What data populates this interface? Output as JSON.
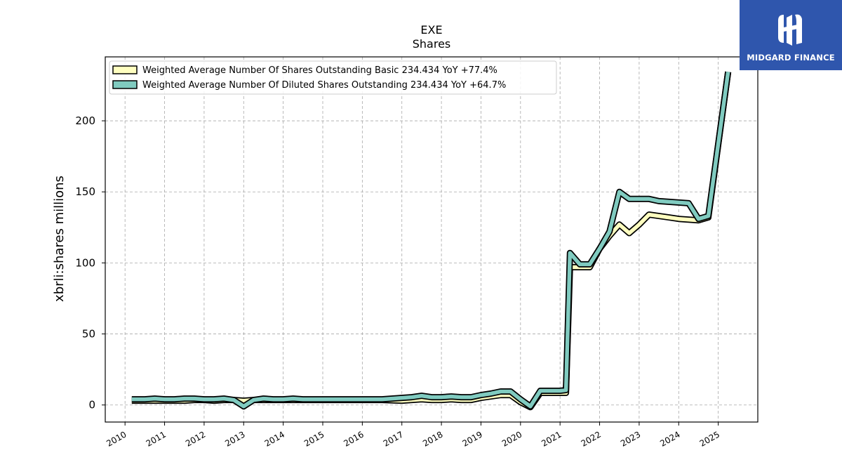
{
  "chart_data": {
    "type": "line",
    "title": "EXE",
    "subtitle": "Shares",
    "ylabel": "xbrli:shares millions",
    "xlabel": "",
    "xlim": [
      2009.5,
      2026.0
    ],
    "ylim": [
      -12,
      245
    ],
    "yticks": [
      0,
      50,
      100,
      150,
      200
    ],
    "xticks": [
      "2010",
      "2011",
      "2012",
      "2013",
      "2014",
      "2015",
      "2016",
      "2017",
      "2018",
      "2019",
      "2020",
      "2021",
      "2022",
      "2023",
      "2024",
      "2025"
    ],
    "grid": true,
    "legend_position": "top-left",
    "series": [
      {
        "name": "Weighted Average Number Of Shares Outstanding Basic",
        "legend_label": "Weighted Average Number Of Shares Outstanding Basic  234.434 YoY +77.4%",
        "color": "#ffffc0",
        "points": [
          [
            2010.17,
            3
          ],
          [
            2010.5,
            3
          ],
          [
            2010.75,
            3
          ],
          [
            2011.0,
            3
          ],
          [
            2011.25,
            3
          ],
          [
            2011.5,
            3
          ],
          [
            2011.75,
            3.5
          ],
          [
            2012.0,
            3.5
          ],
          [
            2012.25,
            3
          ],
          [
            2012.5,
            3.5
          ],
          [
            2012.75,
            3.5
          ],
          [
            2013.0,
            3
          ],
          [
            2013.25,
            3.5
          ],
          [
            2013.5,
            3.5
          ],
          [
            2013.75,
            3.5
          ],
          [
            2014.0,
            3.5
          ],
          [
            2014.25,
            3.5
          ],
          [
            2014.5,
            3.5
          ],
          [
            2015.0,
            3.5
          ],
          [
            2015.5,
            3.5
          ],
          [
            2016.0,
            3.5
          ],
          [
            2016.5,
            3.5
          ],
          [
            2017.0,
            3
          ],
          [
            2017.25,
            3.5
          ],
          [
            2017.5,
            4
          ],
          [
            2017.75,
            3.5
          ],
          [
            2018.0,
            3.5
          ],
          [
            2018.25,
            4
          ],
          [
            2018.5,
            3.5
          ],
          [
            2018.75,
            3.5
          ],
          [
            2019.0,
            5
          ],
          [
            2019.25,
            6
          ],
          [
            2019.5,
            7
          ],
          [
            2019.75,
            7
          ],
          [
            2020.0,
            2
          ],
          [
            2020.25,
            -1.5
          ],
          [
            2020.5,
            8.5
          ],
          [
            2020.75,
            8.5
          ],
          [
            2021.0,
            8.5
          ],
          [
            2021.15,
            8.5
          ],
          [
            2021.25,
            97
          ],
          [
            2021.5,
            97
          ],
          [
            2021.75,
            97
          ],
          [
            2022.0,
            110
          ],
          [
            2022.25,
            119
          ],
          [
            2022.5,
            127
          ],
          [
            2022.75,
            121
          ],
          [
            2023.0,
            127
          ],
          [
            2023.25,
            134
          ],
          [
            2023.5,
            133
          ],
          [
            2023.75,
            132
          ],
          [
            2024.0,
            131
          ],
          [
            2024.25,
            130.5
          ],
          [
            2024.5,
            130
          ],
          [
            2024.75,
            132
          ],
          [
            2025.25,
            234.434
          ]
        ]
      },
      {
        "name": "Weighted Average Number Of Diluted Shares Outstanding",
        "legend_label": "Weighted Average Number Of Diluted Shares Outstanding  234.434 YoY +64.7%",
        "color": "#80cbc0",
        "points": [
          [
            2010.17,
            4
          ],
          [
            2010.5,
            4
          ],
          [
            2010.75,
            4.5
          ],
          [
            2011.0,
            4
          ],
          [
            2011.25,
            4
          ],
          [
            2011.5,
            4.5
          ],
          [
            2011.75,
            4.5
          ],
          [
            2012.0,
            4
          ],
          [
            2012.25,
            4
          ],
          [
            2012.5,
            4.5
          ],
          [
            2012.75,
            3.5
          ],
          [
            2013.0,
            -1
          ],
          [
            2013.25,
            3.5
          ],
          [
            2013.5,
            4.5
          ],
          [
            2013.75,
            4
          ],
          [
            2014.0,
            4
          ],
          [
            2014.25,
            4.5
          ],
          [
            2014.5,
            4
          ],
          [
            2015.0,
            4
          ],
          [
            2015.5,
            4
          ],
          [
            2016.0,
            4
          ],
          [
            2016.5,
            4
          ],
          [
            2017.0,
            5
          ],
          [
            2017.25,
            5.5
          ],
          [
            2017.5,
            6.5
          ],
          [
            2017.75,
            5.5
          ],
          [
            2018.0,
            5.5
          ],
          [
            2018.25,
            6
          ],
          [
            2018.5,
            5.5
          ],
          [
            2018.75,
            5.5
          ],
          [
            2019.0,
            7
          ],
          [
            2019.25,
            8
          ],
          [
            2019.5,
            9.5
          ],
          [
            2019.75,
            9.5
          ],
          [
            2020.0,
            4
          ],
          [
            2020.25,
            -1
          ],
          [
            2020.5,
            10
          ],
          [
            2020.75,
            10
          ],
          [
            2021.0,
            10
          ],
          [
            2021.15,
            10.5
          ],
          [
            2021.25,
            107
          ],
          [
            2021.5,
            99
          ],
          [
            2021.75,
            99
          ],
          [
            2022.0,
            110
          ],
          [
            2022.25,
            122
          ],
          [
            2022.5,
            150
          ],
          [
            2022.75,
            145
          ],
          [
            2023.0,
            145
          ],
          [
            2023.25,
            145
          ],
          [
            2023.5,
            143.5
          ],
          [
            2023.75,
            143
          ],
          [
            2024.0,
            142.5
          ],
          [
            2024.25,
            142
          ],
          [
            2024.5,
            131
          ],
          [
            2024.75,
            133
          ],
          [
            2025.25,
            234.434
          ]
        ]
      }
    ]
  },
  "logo": {
    "text": "MIDGARD FINANCE",
    "bg": "#2f56ad"
  }
}
